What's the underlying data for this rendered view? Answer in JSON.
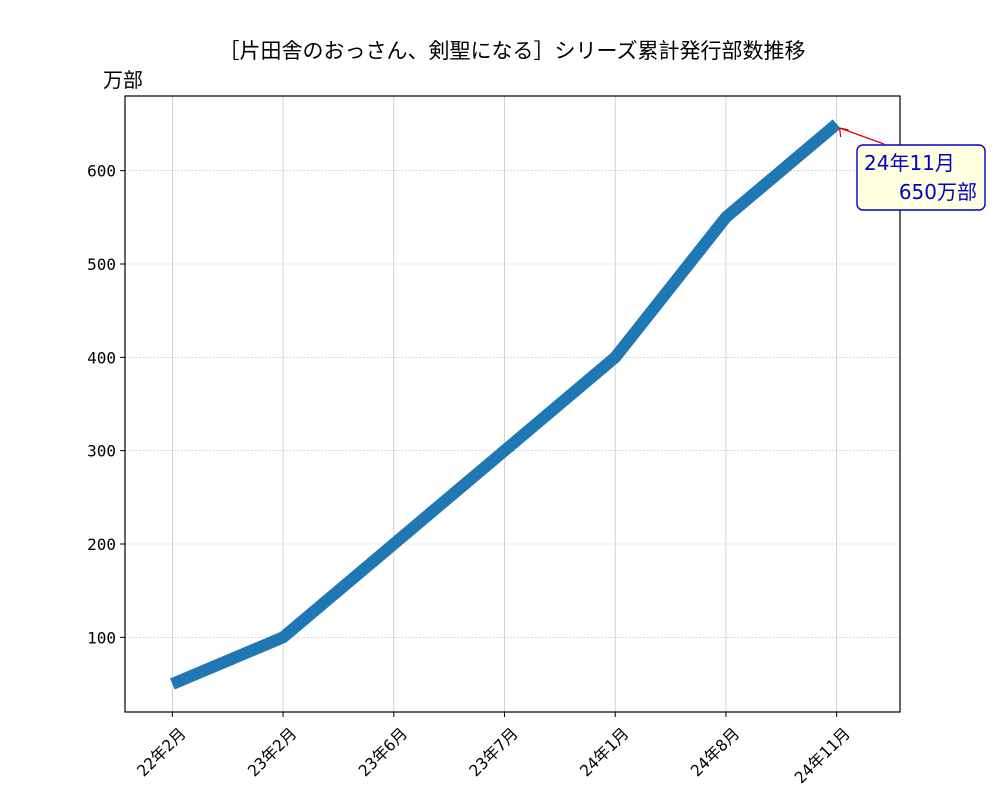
{
  "chart_data": {
    "type": "line",
    "title": "［片田舎のおっさん、剣聖になる］シリーズ累計発行部数推移",
    "ylabel": "万部",
    "xlabel": "",
    "categories": [
      "22年2月",
      "23年2月",
      "23年6月",
      "23年7月",
      "24年1月",
      "24年8月",
      "24年11月"
    ],
    "series": [
      {
        "values": [
          50,
          100,
          200,
          300,
          400,
          550,
          650
        ],
        "color": "#1f77b4"
      }
    ],
    "ylim": [
      20,
      680
    ],
    "yticks": [
      100,
      200,
      300,
      400,
      500,
      600
    ],
    "grid": true,
    "annotation": {
      "category": "24年11月",
      "value": 650,
      "line1": "24年11月",
      "line2": "650万部",
      "text_color": "#0000cc",
      "box_fill": "#ffffe0",
      "box_stroke": "#0000cc",
      "arrow_color": "#dd0000"
    }
  }
}
